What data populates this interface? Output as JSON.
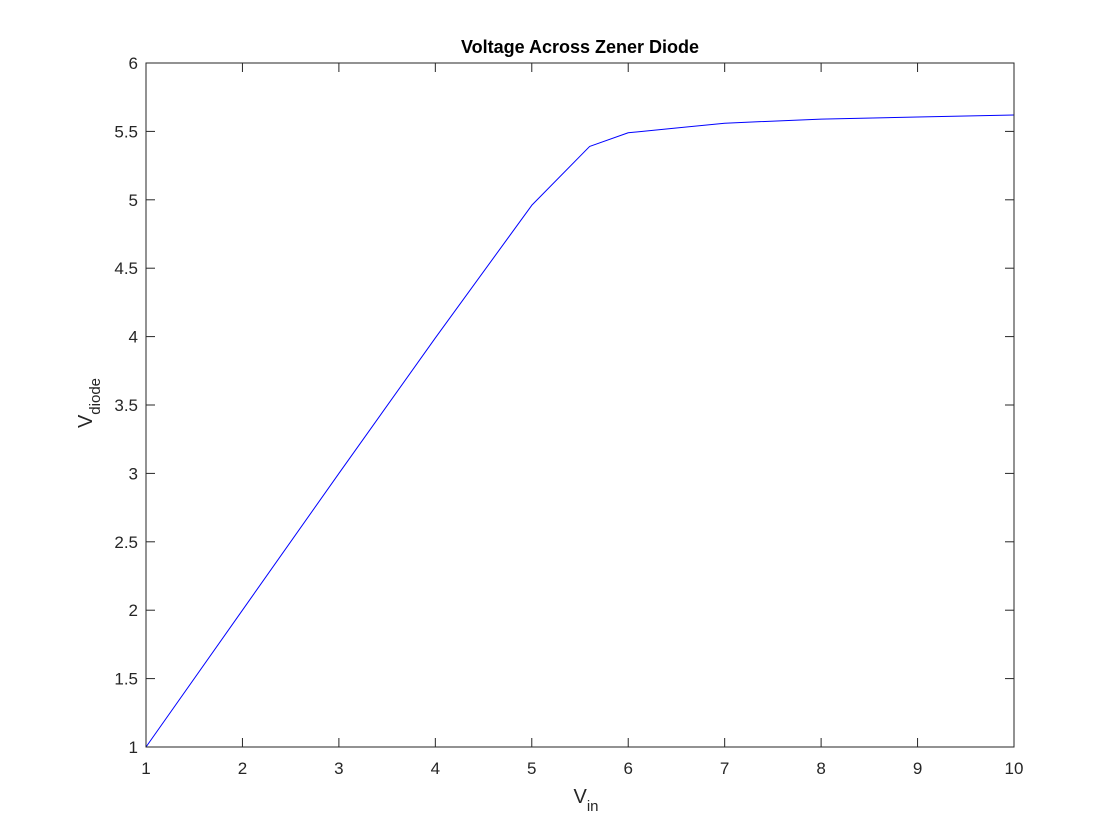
{
  "chart_data": {
    "type": "line",
    "title": "Voltage Across Zener Diode",
    "xlabel": {
      "main": "V",
      "sub": "in"
    },
    "ylabel": {
      "main": "V",
      "sub": "diode"
    },
    "xlim": [
      1,
      10
    ],
    "ylim": [
      1,
      6
    ],
    "xticks": [
      1,
      2,
      3,
      4,
      5,
      6,
      7,
      8,
      9,
      10
    ],
    "xtick_labels": [
      "1",
      "2",
      "3",
      "4",
      "5",
      "6",
      "7",
      "8",
      "9",
      "10"
    ],
    "yticks": [
      1,
      1.5,
      2,
      2.5,
      3,
      3.5,
      4,
      4.5,
      5,
      5.5,
      6
    ],
    "ytick_labels": [
      "1",
      "1.5",
      "2",
      "2.5",
      "3",
      "3.5",
      "4",
      "4.5",
      "5",
      "5.5",
      "6"
    ],
    "grid": false,
    "series": [
      {
        "color": "#0000ff",
        "x": [
          1,
          2,
          3,
          4,
          5,
          5.6,
          6,
          7,
          8,
          9,
          10
        ],
        "y": [
          1.0,
          2.0,
          3.0,
          3.99,
          4.96,
          5.39,
          5.49,
          5.56,
          5.59,
          5.605,
          5.62
        ]
      }
    ]
  }
}
